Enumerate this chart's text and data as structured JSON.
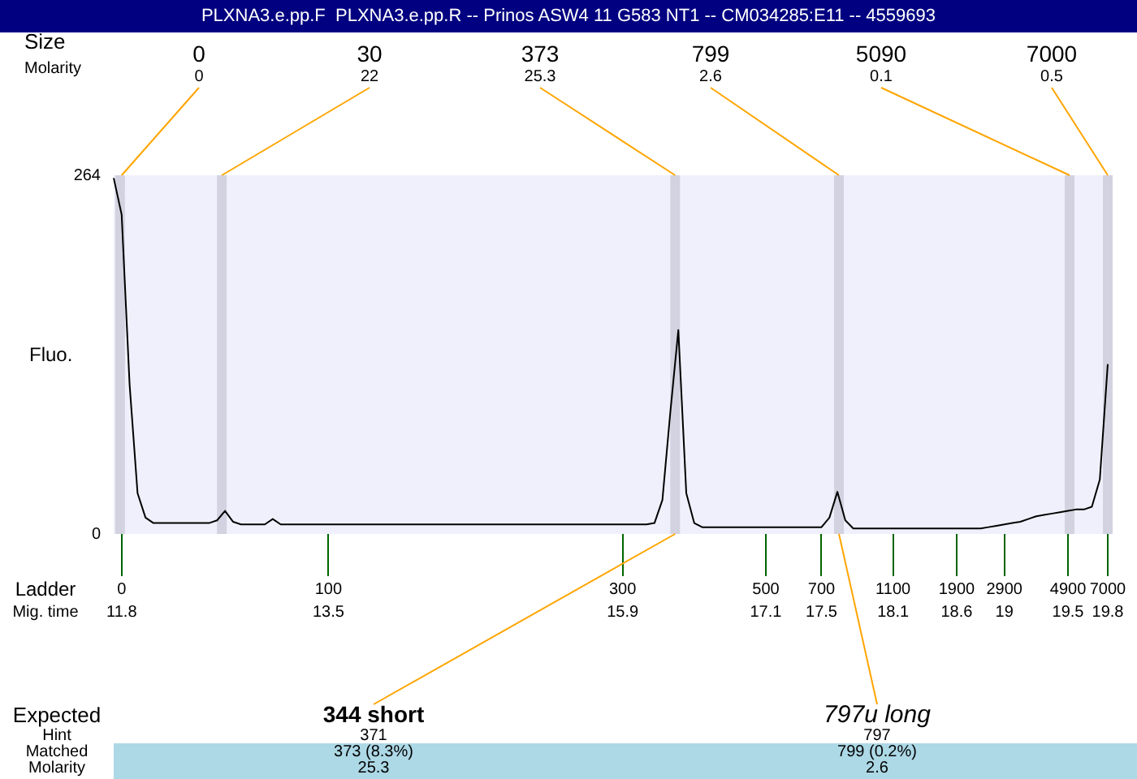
{
  "chart_data": {
    "type": "line",
    "title": "PLXNA3.e.pp.F  PLXNA3.e.pp.R -- Prinos ASW4 11 G583 NT1 -- CM034285:E11 -- 4559693",
    "ylabel": "Fluo.",
    "categories": [
      null,
      "0",
      null,
      null,
      null,
      null,
      null,
      null,
      null,
      null,
      null,
      null,
      null,
      null,
      null,
      null,
      null,
      null,
      null,
      null,
      null,
      null,
      null,
      null,
      null,
      null,
      null,
      "100",
      null,
      null,
      null,
      null,
      null,
      null,
      null,
      null,
      null,
      null,
      null,
      null,
      null,
      null,
      null,
      null,
      null,
      null,
      null,
      null,
      null,
      null,
      null,
      null,
      null,
      null,
      null,
      null,
      null,
      null,
      null,
      null,
      null,
      null,
      null,
      null,
      "300",
      null,
      null,
      null,
      null,
      null,
      null,
      null,
      null,
      null,
      null,
      null,
      null,
      null,
      null,
      null,
      null,
      null,
      "500",
      null,
      null,
      null,
      null,
      null,
      null,
      "700",
      null,
      null,
      null,
      null,
      null,
      null,
      null,
      null,
      "1100",
      null,
      null,
      null,
      null,
      null,
      null,
      null,
      "1900",
      null,
      null,
      null,
      null,
      null,
      "2900",
      null,
      null,
      null,
      null,
      null,
      null,
      null,
      "4900",
      null,
      null,
      null,
      null,
      "7000"
    ],
    "series": [
      {
        "color": "#000000",
        "values": [
          262,
          235,
          110,
          30,
          12,
          8,
          8,
          8,
          8,
          8,
          8,
          8,
          8,
          10,
          17,
          9,
          7,
          7,
          7,
          7,
          11,
          7,
          7,
          7,
          7,
          7,
          7,
          7,
          7,
          7,
          7,
          7,
          7,
          7,
          7,
          7,
          7,
          7,
          7,
          7,
          7,
          7,
          7,
          7,
          7,
          7,
          7,
          7,
          7,
          7,
          7,
          7,
          7,
          7,
          7,
          7,
          7,
          7,
          7,
          7,
          7,
          7,
          7,
          7,
          7,
          7,
          7,
          7,
          8,
          25,
          90,
          150,
          30,
          8,
          5,
          5,
          5,
          5,
          5,
          5,
          5,
          5,
          5,
          5,
          5,
          5,
          5,
          5,
          5,
          5,
          12,
          31,
          10,
          4,
          4,
          4,
          4,
          4,
          4,
          4,
          4,
          4,
          4,
          4,
          4,
          4,
          4,
          4,
          4,
          4,
          5,
          6,
          7,
          8,
          9,
          11,
          13,
          14,
          15,
          16,
          17,
          18,
          18,
          20,
          40,
          125
        ]
      }
    ],
    "ylim": [
      0,
      264
    ],
    "yticks": [
      0,
      264
    ],
    "grid": false,
    "legend": false,
    "marker": "none",
    "annotations": [
      "Size",
      "Molarity",
      "0",
      "30",
      "373",
      "799",
      "5090",
      "7000",
      {
        "text": "0",
        "x": "0",
        "y": 264
      },
      "22",
      "25.3",
      "2.6",
      "0.1",
      "0.5",
      "Ladder",
      "Mig. time",
      "11.8",
      "13.5",
      "15.9",
      "17.1",
      "17.5",
      "18.1",
      "18.6",
      "19",
      "19.5",
      "19.8",
      "Expected",
      "Hint",
      "Matched",
      "Molarity",
      "344 short",
      "371",
      "373 (8.3%)",
      "25.3",
      "797u long",
      "797",
      "799 (0.2%)",
      "2.6"
    ]
  }
}
